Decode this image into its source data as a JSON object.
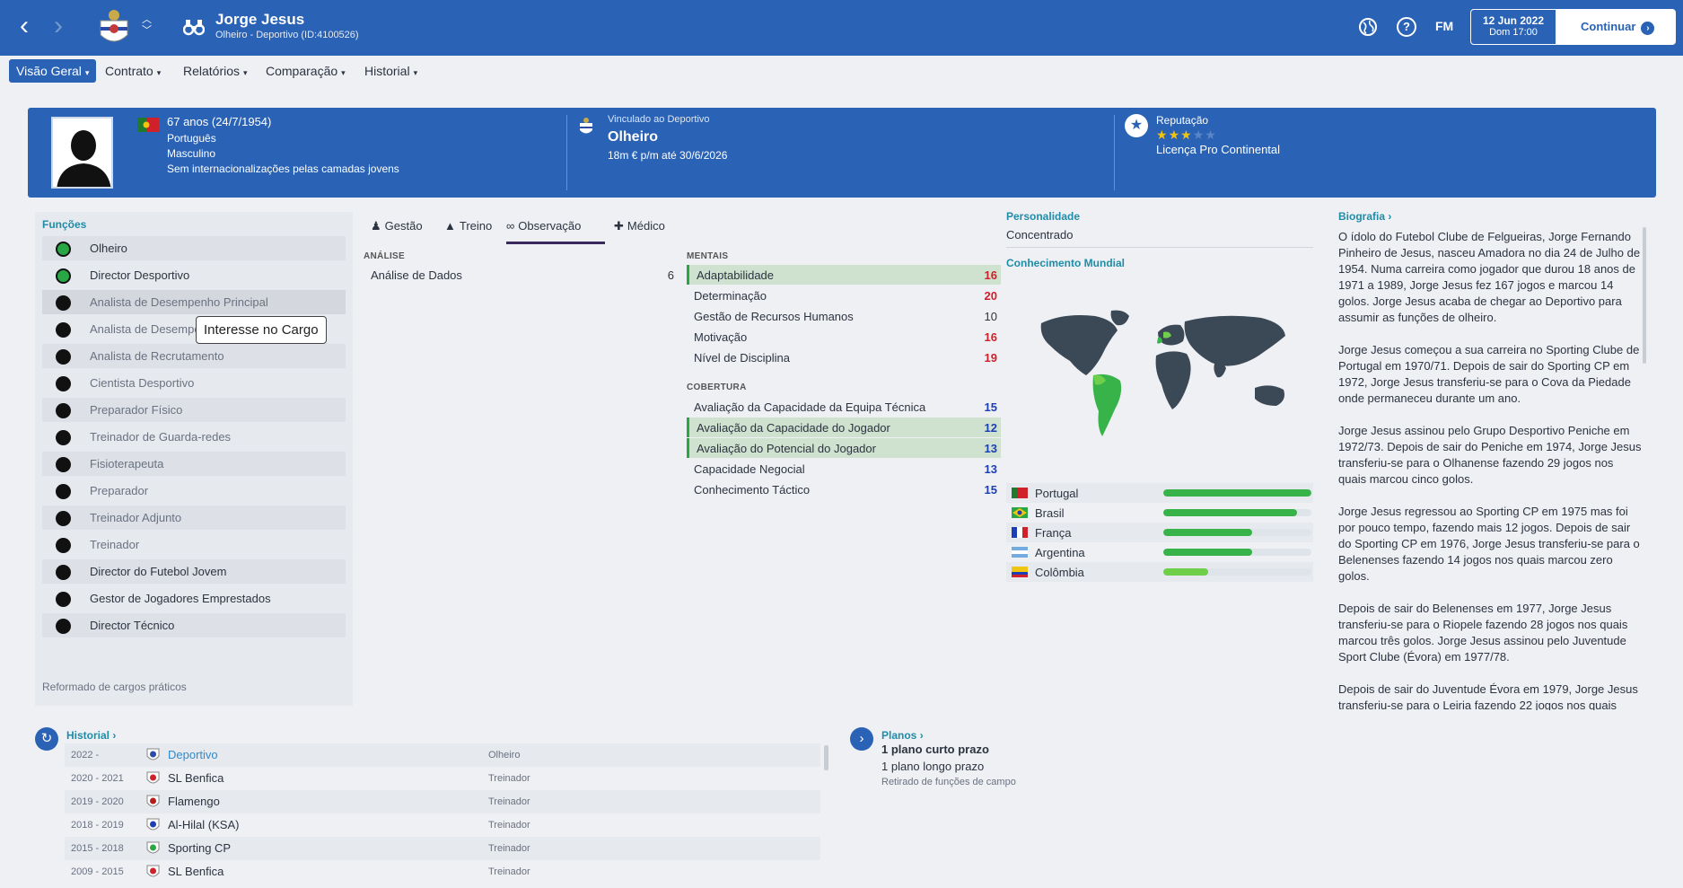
{
  "topbar": {
    "name": "Jorge Jesus",
    "subtitle": "Olheiro - Deportivo (ID:4100526)",
    "fm_label": "FM",
    "help_label": "?",
    "date": "12 Jun 2022",
    "day_time": "Dom 17:00",
    "continue_label": "Continuar",
    "icons": [
      "back-arrow-icon",
      "forward-arrow-icon",
      "club-crest-icon",
      "binoculars-icon",
      "globe-icon",
      "help-icon"
    ]
  },
  "tabs": [
    {
      "label": "Visão Geral"
    },
    {
      "label": "Contrato"
    },
    {
      "label": "Relatórios"
    },
    {
      "label": "Comparação"
    },
    {
      "label": "Historial"
    }
  ],
  "header": {
    "age": "67 anos (24/7/1954)",
    "nationality": "Português",
    "gender": "Masculino",
    "youth_caps": "Sem internacionalizações pelas camadas jovens",
    "contract_label": "Vinculado ao Deportivo",
    "role": "Olheiro",
    "wage": "18m € p/m até 30/6/2026",
    "reputation_label": "Reputação",
    "reputation_stars": 3,
    "reputation_max": 5,
    "licence": "Licença Pro Continental"
  },
  "roles": {
    "title": "Funções",
    "items": [
      {
        "label": "Olheiro",
        "status": "green",
        "dim": false
      },
      {
        "label": "Director Desportivo",
        "status": "green",
        "dim": false
      },
      {
        "label": "Analista de Desempenho Principal",
        "status": "black",
        "dim": true
      },
      {
        "label": "Analista de Desempe",
        "status": "black",
        "dim": true
      },
      {
        "label": "Analista de Recrutamento",
        "status": "black",
        "dim": true
      },
      {
        "label": "Cientista Desportivo",
        "status": "black",
        "dim": true
      },
      {
        "label": "Preparador Físico",
        "status": "black",
        "dim": true
      },
      {
        "label": "Treinador de Guarda-redes",
        "status": "black",
        "dim": true
      },
      {
        "label": "Fisioterapeuta",
        "status": "black",
        "dim": true
      },
      {
        "label": "Preparador",
        "status": "black",
        "dim": true
      },
      {
        "label": "Treinador Adjunto",
        "status": "black",
        "dim": true
      },
      {
        "label": "Treinador",
        "status": "black",
        "dim": true
      },
      {
        "label": "Director do Futebol Jovem",
        "status": "black",
        "dim": false
      },
      {
        "label": "Gestor de Jogadores Emprestados",
        "status": "black",
        "dim": false
      },
      {
        "label": "Director Técnico",
        "status": "black",
        "dim": false
      }
    ],
    "tooltip": "Interesse no Cargo",
    "retired_note": "Reformado de cargos práticos"
  },
  "attr_tabs": [
    {
      "label": "Gestão",
      "icon": "person-icon"
    },
    {
      "label": "Treino",
      "icon": "training-cone-icon"
    },
    {
      "label": "Observação",
      "icon": "binoculars-icon"
    },
    {
      "label": "Médico",
      "icon": "medical-kit-icon"
    }
  ],
  "analysis": {
    "title": "ANÁLISE",
    "items": [
      {
        "label": "Análise de Dados",
        "value": "6"
      }
    ]
  },
  "mental": {
    "title": "MENTAIS",
    "items": [
      {
        "label": "Adaptabilidade",
        "value": "16"
      },
      {
        "label": "Determinação",
        "value": "20"
      },
      {
        "label": "Gestão de Recursos Humanos",
        "value": "10"
      },
      {
        "label": "Motivação",
        "value": "16"
      },
      {
        "label": "Nível de Disciplina",
        "value": "19"
      }
    ]
  },
  "coverage": {
    "title": "COBERTURA",
    "items": [
      {
        "label": "Avaliação da Capacidade da Equipa Técnica",
        "value": "15"
      },
      {
        "label": "Avaliação da Capacidade do Jogador",
        "value": "12"
      },
      {
        "label": "Avaliação do Potencial do Jogador",
        "value": "13"
      },
      {
        "label": "Capacidade Negocial",
        "value": "13"
      },
      {
        "label": "Conhecimento Táctico",
        "value": "15"
      }
    ]
  },
  "personality": {
    "title": "Personalidade",
    "value": "Concentrado"
  },
  "world_knowledge": {
    "title": "Conhecimento Mundial",
    "countries": [
      {
        "name": "Portugal",
        "level": 1.0
      },
      {
        "name": "Brasil",
        "level": 0.9
      },
      {
        "name": "França",
        "level": 0.6
      },
      {
        "name": "Argentina",
        "level": 0.6
      },
      {
        "name": "Colômbia",
        "level": 0.3
      }
    ],
    "colors": {
      "known": "#37b34a",
      "partial": "#6fcf4a",
      "land": "#3b4856"
    }
  },
  "biography": {
    "title": "Biografia",
    "paragraphs": [
      "O ídolo do Futebol Clube de Felgueiras, Jorge Fernando Pinheiro de Jesus, nasceu Amadora no dia 24 de Julho de 1954. Numa carreira como jogador que durou 18 anos de 1971 a 1989, Jorge Jesus fez 167 jogos e marcou 14 golos. Jorge Jesus acaba de chegar ao Deportivo para assumir as funções de olheiro.",
      "Jorge Jesus começou a sua carreira no Sporting Clube de Portugal em 1970/71. Depois de sair do Sporting CP em 1972, Jorge Jesus transferiu-se para o Cova da Piedade onde permaneceu durante um ano.",
      "Jorge Jesus assinou pelo Grupo Desportivo Peniche em 1972/73. Depois de sair do Peniche em 1974, Jorge Jesus transferiu-se para o Olhanense fazendo 29 jogos nos quais marcou cinco golos.",
      "Jorge Jesus regressou ao Sporting CP em 1975 mas foi por pouco tempo, fazendo mais 12 jogos. Depois de sair do Sporting CP em 1976, Jorge Jesus transferiu-se para o Belenenses fazendo 14 jogos nos quais marcou zero golos.",
      "Depois de sair do Belenenses em 1977, Jorge Jesus transferiu-se para o Riopele fazendo 28 jogos nos quais marcou três golos. Jorge Jesus assinou pelo Juventude Sport Clube (Évora) em 1977/78.",
      "Depois de sair do Juventude Évora em 1979, Jorge Jesus transferiu-se para o Leiria fazendo 22 jogos nos quais"
    ]
  },
  "history": {
    "title": "Historial",
    "rows": [
      {
        "years": "2022 -",
        "club": "Deportivo",
        "role": "Olheiro"
      },
      {
        "years": "2020 - 2021",
        "club": "SL Benfica",
        "role": "Treinador"
      },
      {
        "years": "2019 - 2020",
        "club": "Flamengo",
        "role": "Treinador"
      },
      {
        "years": "2018 - 2019",
        "club": "Al-Hilal (KSA)",
        "role": "Treinador"
      },
      {
        "years": "2015 - 2018",
        "club": "Sporting CP",
        "role": "Treinador"
      },
      {
        "years": "2009 - 2015",
        "club": "SL Benfica",
        "role": "Treinador"
      }
    ]
  },
  "plans": {
    "title": "Planos",
    "short_term": "1 plano curto prazo",
    "long_term": "1 plano longo prazo",
    "retired": "Retirado de funções de campo"
  }
}
